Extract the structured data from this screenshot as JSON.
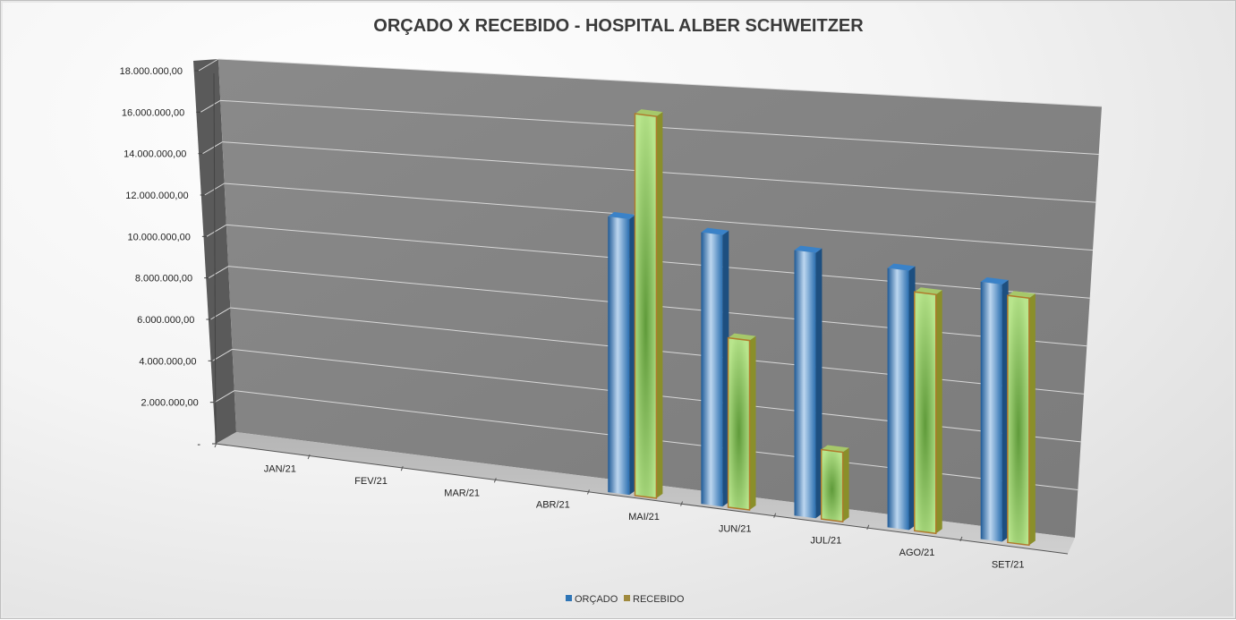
{
  "chart_data": {
    "type": "bar",
    "title": "ORÇADO X RECEBIDO - HOSPITAL ALBER SCHWEITZER",
    "xlabel": "",
    "ylabel": "",
    "categories": [
      "JAN/21",
      "FEV/21",
      "MAR/21",
      "ABR/21",
      "MAI/21",
      "JUN/21",
      "JUL/21",
      "AGO/21",
      "SET/21"
    ],
    "series": [
      {
        "name": "ORÇADO",
        "color": "#2e75b6",
        "values": [
          0,
          0,
          0,
          0,
          13500000,
          13300000,
          13000000,
          12700000,
          12600000
        ]
      },
      {
        "name": "RECEBIDO",
        "color": "#92d050",
        "values": [
          0,
          0,
          0,
          0,
          18700000,
          8300000,
          3400000,
          11700000,
          12100000
        ]
      }
    ],
    "ylim": [
      0,
      18000000
    ],
    "yticks": [
      "-",
      "2.000.000,00",
      "4.000.000,00",
      "6.000.000,00",
      "8.000.000,00",
      "10.000.000,00",
      "12.000.000,00",
      "14.000.000,00",
      "16.000.000,00",
      "18.000.000,00"
    ],
    "grid": true,
    "legend_position": "bottom"
  }
}
